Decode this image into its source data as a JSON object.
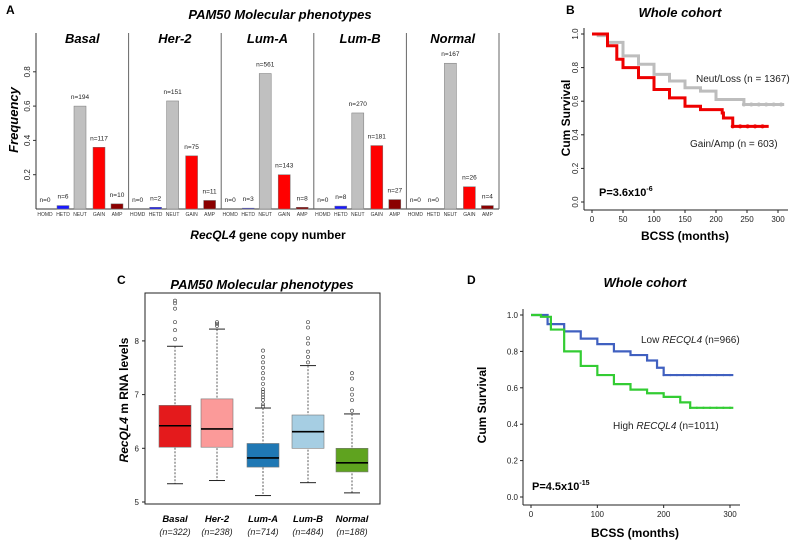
{
  "panels": {
    "a": "A",
    "b": "B",
    "c": "C",
    "d": "D"
  },
  "chart_data": [
    {
      "type": "bar",
      "title": "PAM50 Molecular phenotypes",
      "ylabel": "Frequency",
      "xlabel_gene": "RecQL4",
      "xlabel_rest": " gene copy number",
      "ylim": [
        0,
        1
      ],
      "yticks": [
        "0.2",
        "0.4",
        "0.6",
        "0.8"
      ],
      "categories": [
        "HOMD",
        "HETD",
        "NEUT",
        "GAIN",
        "AMP"
      ],
      "colors": [
        "#888888",
        "#1a1aff",
        "#c0c0c0",
        "#ff0000",
        "#8b0000"
      ],
      "groups": [
        {
          "name": "Basal",
          "values": [
            0,
            0.02,
            0.6,
            0.36,
            0.03
          ],
          "labels": [
            "n=0",
            "n=6",
            "n=194",
            "n=117",
            "n=10"
          ]
        },
        {
          "name": "Her-2",
          "values": [
            0,
            0.01,
            0.63,
            0.31,
            0.05
          ],
          "labels": [
            "n=0",
            "n=2",
            "n=151",
            "n=75",
            "n=11"
          ]
        },
        {
          "name": "Lum-A",
          "values": [
            0,
            0.005,
            0.79,
            0.2,
            0.01
          ],
          "labels": [
            "n=0",
            "n=3",
            "n=561",
            "n=143",
            "n=8"
          ]
        },
        {
          "name": "Lum-B",
          "values": [
            0,
            0.017,
            0.56,
            0.37,
            0.055
          ],
          "labels": [
            "n=0",
            "n=8",
            "n=270",
            "n=181",
            "n=27"
          ]
        },
        {
          "name": "Normal",
          "values": [
            0,
            0,
            0.85,
            0.13,
            0.02
          ],
          "labels": [
            "n=0",
            "n=0",
            "n=167",
            "n=26",
            "n=4"
          ]
        }
      ]
    },
    {
      "type": "line",
      "title": "Whole cohort",
      "xlabel": "BCSS (months)",
      "ylabel": "Cum Survival",
      "xlim": [
        0,
        310
      ],
      "ylim": [
        0,
        1
      ],
      "xticks": [
        "0",
        "50",
        "100",
        "150",
        "200",
        "250",
        "300"
      ],
      "yticks": [
        "0.0",
        "0.2",
        "0.4",
        "0.6",
        "0.8",
        "1.0"
      ],
      "pvalue_base": "P=3.6x10",
      "pvalue_exp": "-6",
      "series": [
        {
          "name": "Neut/Loss (n = 1367)",
          "color": "#bdbdbd",
          "x": [
            0,
            10,
            25,
            50,
            75,
            100,
            125,
            150,
            175,
            200,
            240,
            245,
            310
          ],
          "y": [
            1,
            0.99,
            0.95,
            0.87,
            0.82,
            0.76,
            0.72,
            0.68,
            0.66,
            0.61,
            0.61,
            0.58,
            0.58
          ]
        },
        {
          "name": "Gain/Amp (n = 603)",
          "color": "#ee0000",
          "x": [
            0,
            25,
            40,
            50,
            75,
            100,
            125,
            150,
            175,
            210,
            212,
            225,
            227,
            285
          ],
          "y": [
            1,
            0.93,
            0.85,
            0.8,
            0.74,
            0.67,
            0.62,
            0.57,
            0.55,
            0.53,
            0.5,
            0.5,
            0.45,
            0.45
          ]
        }
      ]
    },
    {
      "type": "box",
      "title": "PAM50 Molecular phenotypes",
      "ylabel_gene": "RecQL4",
      "ylabel_rest": "  m RNA levels",
      "ylim": [
        4.96,
        8.9
      ],
      "yticks": [
        "5",
        "6",
        "7",
        "8"
      ],
      "boxes": [
        {
          "name": "Basal",
          "n": "(n=322)",
          "color": "#e41a1c",
          "q1": 6.02,
          "median": 6.42,
          "q3": 6.8,
          "lo": 5.34,
          "hi": 7.9,
          "outliers": [
            8.03,
            8.2,
            8.35,
            8.6,
            8.7,
            8.75
          ]
        },
        {
          "name": "Her-2",
          "n": "(n=238)",
          "color": "#fb9a99",
          "q1": 6.02,
          "median": 6.36,
          "q3": 6.92,
          "lo": 5.4,
          "hi": 8.22,
          "outliers": [
            8.28,
            8.32,
            8.35
          ]
        },
        {
          "name": "Lum-A",
          "n": "(n=714)",
          "color": "#1f78b4",
          "q1": 5.65,
          "median": 5.82,
          "q3": 6.09,
          "lo": 5.12,
          "hi": 6.75,
          "outliers": [
            6.78,
            6.82,
            6.9,
            6.95,
            7.0,
            7.05,
            7.1,
            7.2,
            7.3,
            7.4,
            7.5,
            7.6,
            7.7,
            7.82
          ]
        },
        {
          "name": "Lum-B",
          "n": "(n=484)",
          "color": "#a6cee3",
          "q1": 6.0,
          "median": 6.31,
          "q3": 6.62,
          "lo": 5.36,
          "hi": 7.54,
          "outliers": [
            7.6,
            7.7,
            7.8,
            7.95,
            8.05,
            8.25,
            8.35
          ]
        },
        {
          "name": "Normal",
          "n": "(n=188)",
          "color": "#5fa31f",
          "q1": 5.56,
          "median": 5.73,
          "q3": 6.0,
          "lo": 5.17,
          "hi": 6.64,
          "outliers": [
            6.7,
            6.9,
            7.0,
            7.1,
            7.3,
            7.4
          ]
        }
      ]
    },
    {
      "type": "line",
      "title": "Whole cohort",
      "xlabel": "BCSS (months)",
      "ylabel": "Cum Survival",
      "xlim": [
        0,
        300
      ],
      "ylim": [
        0,
        1
      ],
      "xticks": [
        "0",
        "100",
        "200",
        "300"
      ],
      "yticks": [
        "0.0",
        "0.2",
        "0.4",
        "0.6",
        "0.8",
        "1.0"
      ],
      "pvalue_base": "P=4.5x10",
      "pvalue_exp": "-15",
      "series": [
        {
          "name_pre": "Low ",
          "name_gene": "RECQL4",
          "name_post": " (n=966)",
          "color": "#4060c0",
          "x": [
            0,
            25,
            50,
            75,
            100,
            125,
            150,
            175,
            190,
            200,
            305
          ],
          "y": [
            1,
            0.95,
            0.91,
            0.87,
            0.84,
            0.8,
            0.78,
            0.75,
            0.71,
            0.67,
            0.67
          ]
        },
        {
          "name_pre": "High ",
          "name_gene": "RECQL4",
          "name_post": " (n=1011)",
          "color": "#33cc33",
          "x": [
            0,
            15,
            30,
            50,
            75,
            100,
            125,
            150,
            175,
            200,
            225,
            240,
            305
          ],
          "y": [
            1,
            0.99,
            0.92,
            0.8,
            0.72,
            0.67,
            0.62,
            0.59,
            0.57,
            0.55,
            0.52,
            0.49,
            0.49
          ]
        }
      ]
    }
  ]
}
